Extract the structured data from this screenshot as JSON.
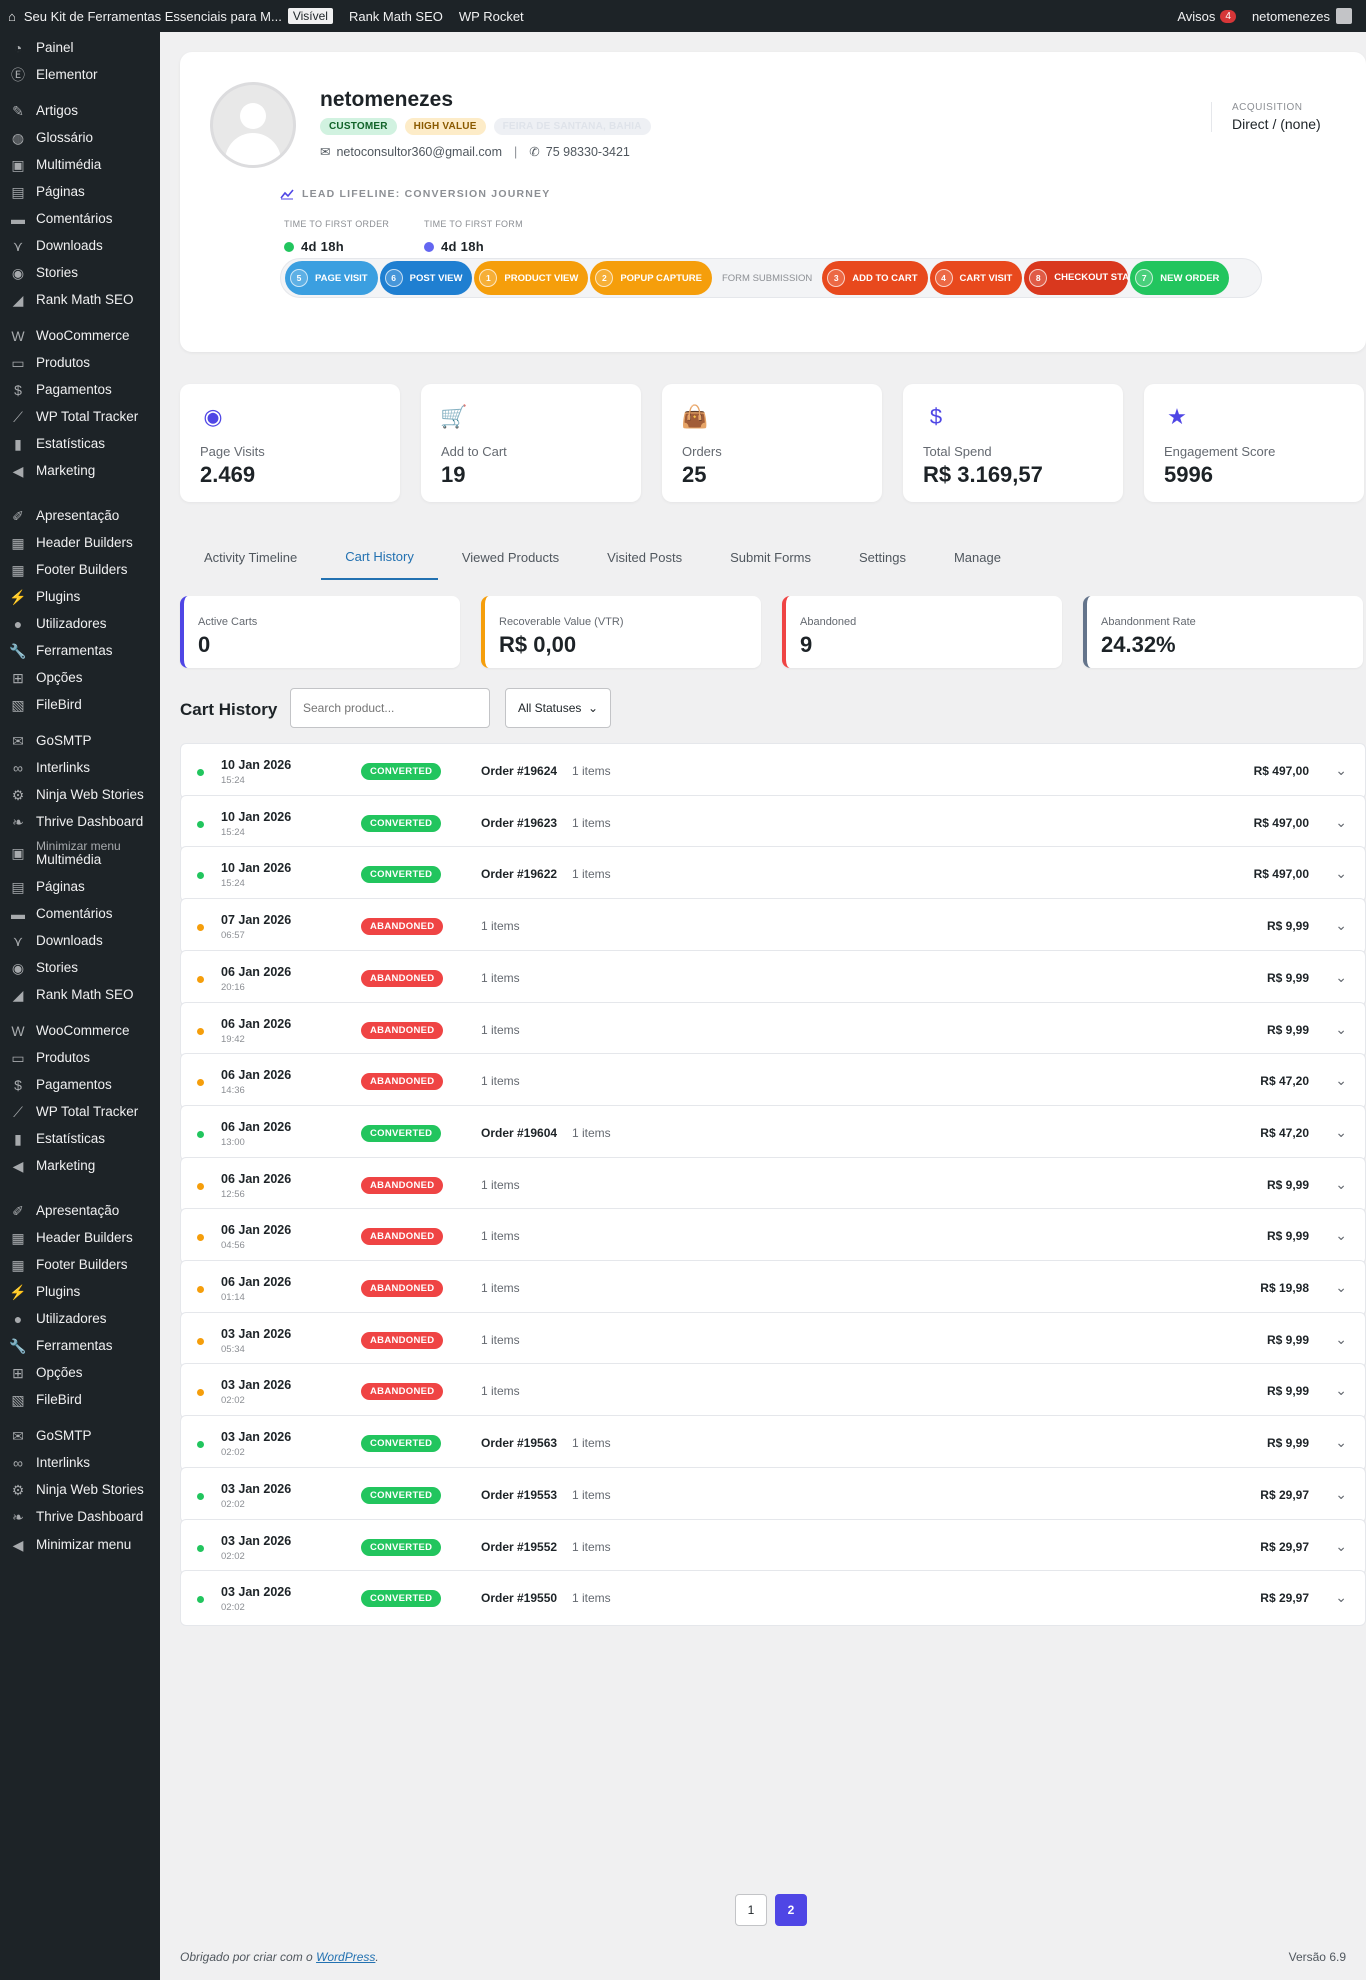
{
  "adminbar": {
    "site_title": "Seu Kit de Ferramentas Essenciais para M...",
    "visibility": "Visível",
    "rank_math": "Rank Math SEO",
    "wp_rocket": "WP Rocket",
    "notices_label": "Avisos",
    "notices_count": "4",
    "user": "netomenezes"
  },
  "sidebar": {
    "items": [
      {
        "label": "Painel",
        "icon": "dashboard-icon"
      },
      {
        "label": "Elementor",
        "icon": "elementor-icon"
      },
      {
        "label": "Artigos",
        "icon": "pin-icon"
      },
      {
        "label": "Glossário",
        "icon": "globe-icon"
      },
      {
        "label": "Multimédia",
        "icon": "media-icon"
      },
      {
        "label": "Páginas",
        "icon": "page-icon"
      },
      {
        "label": "Comentários",
        "icon": "comment-icon"
      },
      {
        "label": "Downloads",
        "icon": "download-icon"
      },
      {
        "label": "Stories",
        "icon": "stories-icon"
      },
      {
        "label": "Rank Math SEO",
        "icon": "chart-icon"
      },
      {
        "label": "WooCommerce",
        "icon": "woo-icon"
      },
      {
        "label": "Produtos",
        "icon": "archive-icon"
      },
      {
        "label": "Pagamentos",
        "icon": "payment-icon"
      },
      {
        "label": "WP Total Tracker",
        "icon": "tracker-icon"
      },
      {
        "label": "Estatísticas",
        "icon": "bar-chart-icon"
      },
      {
        "label": "Marketing",
        "icon": "megaphone-icon"
      },
      {
        "label": "Apresentação",
        "icon": "brush-icon"
      },
      {
        "label": "Header Builders",
        "icon": "grid-icon"
      },
      {
        "label": "Footer Builders",
        "icon": "grid-icon"
      },
      {
        "label": "Plugins",
        "icon": "plugin-icon"
      },
      {
        "label": "Utilizadores",
        "icon": "user-icon"
      },
      {
        "label": "Ferramentas",
        "icon": "wrench-icon"
      },
      {
        "label": "Opções",
        "icon": "settings-icon"
      },
      {
        "label": "FileBird",
        "icon": "folder-icon"
      },
      {
        "label": "GoSMTP",
        "icon": "mail-icon"
      },
      {
        "label": "Interlinks",
        "icon": "link-icon"
      },
      {
        "label": "Ninja Web Stories",
        "icon": "gear-icon"
      },
      {
        "label": "Thrive Dashboard",
        "icon": "leaf-icon"
      },
      {
        "label": "Minimizar menu",
        "sub": "Multimédia",
        "icon": "media-icon"
      },
      {
        "label": "Páginas",
        "icon": "page-icon"
      },
      {
        "label": "Comentários",
        "icon": "comment-icon"
      },
      {
        "label": "Downloads",
        "icon": "download-icon"
      },
      {
        "label": "Stories",
        "icon": "stories-icon"
      },
      {
        "label": "Rank Math SEO",
        "icon": "chart-icon"
      },
      {
        "label": "WooCommerce",
        "icon": "woo-icon"
      },
      {
        "label": "Produtos",
        "icon": "archive-icon"
      },
      {
        "label": "Pagamentos",
        "icon": "payment-icon"
      },
      {
        "label": "WP Total Tracker",
        "icon": "tracker-icon"
      },
      {
        "label": "Estatísticas",
        "icon": "bar-chart-icon"
      },
      {
        "label": "Marketing",
        "icon": "megaphone-icon"
      },
      {
        "label": "Apresentação",
        "icon": "brush-icon"
      },
      {
        "label": "Header Builders",
        "icon": "grid-icon"
      },
      {
        "label": "Footer Builders",
        "icon": "grid-icon"
      },
      {
        "label": "Plugins",
        "icon": "plugin-icon"
      },
      {
        "label": "Utilizadores",
        "icon": "user-icon"
      },
      {
        "label": "Ferramentas",
        "icon": "wrench-icon"
      },
      {
        "label": "Opções",
        "icon": "settings-icon"
      },
      {
        "label": "FileBird",
        "icon": "folder-icon"
      },
      {
        "label": "GoSMTP",
        "icon": "mail-icon"
      },
      {
        "label": "Interlinks",
        "icon": "link-icon"
      },
      {
        "label": "Ninja Web Stories",
        "icon": "gear-icon"
      },
      {
        "label": "Thrive Dashboard",
        "icon": "leaf-icon"
      },
      {
        "label": "Minimizar menu",
        "icon": "collapse-icon"
      }
    ]
  },
  "profile": {
    "name": "netomenezes",
    "badges": [
      "CUSTOMER",
      "HIGH VALUE",
      "FEIRA DE SANTANA, BAHIA"
    ],
    "email": "netoconsultor360@gmail.com",
    "phone": "75 98330-3421",
    "acquisition_label": "ACQUISITION",
    "acquisition_value": "Direct / (none)",
    "lifeline_title": "LEAD LIFELINE: CONVERSION JOURNEY",
    "ttfo_label": "TIME TO FIRST ORDER",
    "ttfo_value": "4d 18h",
    "ttff_label": "TIME TO FIRST FORM",
    "ttff_value": "4d 18h",
    "journey": [
      {
        "num": "5",
        "label": "PAGE VISIT",
        "color": "#3b9fe0"
      },
      {
        "num": "6",
        "label": "POST VIEW",
        "color": "#1f7fd1"
      },
      {
        "num": "1",
        "label": "PRODUCT VIEW",
        "color": "#f59e0b"
      },
      {
        "num": "2",
        "label": "POPUP CAPTURE",
        "color": "#f59e0b"
      },
      {
        "num": "",
        "label": "FORM SUBMISSION",
        "color": ""
      },
      {
        "num": "3",
        "label": "ADD TO CART",
        "color": "#e8491d"
      },
      {
        "num": "4",
        "label": "CART VISIT",
        "color": "#e8491d"
      },
      {
        "num": "8",
        "label": "CHECKOUT START",
        "color": "#d9381e"
      },
      {
        "num": "7",
        "label": "NEW ORDER",
        "color": "#22c55e"
      }
    ]
  },
  "stats": [
    {
      "label": "Page Visits",
      "value": "2.469",
      "icon": "eye-icon"
    },
    {
      "label": "Add to Cart",
      "value": "19",
      "icon": "cart-icon"
    },
    {
      "label": "Orders",
      "value": "25",
      "icon": "bag-icon"
    },
    {
      "label": "Total Spend",
      "value": "R$ 3.169,57",
      "icon": "dollar-icon"
    },
    {
      "label": "Engagement Score",
      "value": "5996",
      "icon": "star-icon"
    }
  ],
  "tabs": [
    "Activity Timeline",
    "Cart History",
    "Viewed Products",
    "Visited Posts",
    "Submit Forms",
    "Settings",
    "Manage"
  ],
  "cart_summary": [
    {
      "label": "Active Carts",
      "value": "0",
      "color": "#4f46e5"
    },
    {
      "label": "Recoverable Value (VTR)",
      "value": "R$ 0,00",
      "color": "#f59e0b"
    },
    {
      "label": "Abandoned",
      "value": "9",
      "color": "#ef4444"
    },
    {
      "label": "Abandonment Rate",
      "value": "24.32%",
      "color": "#64748b"
    }
  ],
  "cart_history": {
    "title": "Cart History",
    "search_placeholder": "Search product...",
    "status_filter": "All Statuses",
    "rows": [
      {
        "date": "10 Jan 2026",
        "time": "15:24",
        "status": "CONVERTED",
        "order": "Order #19624",
        "items": "1 items",
        "amount": "R$ 497,00"
      },
      {
        "date": "10 Jan 2026",
        "time": "15:24",
        "status": "CONVERTED",
        "order": "Order #19623",
        "items": "1 items",
        "amount": "R$ 497,00"
      },
      {
        "date": "10 Jan 2026",
        "time": "15:24",
        "status": "CONVERTED",
        "order": "Order #19622",
        "items": "1 items",
        "amount": "R$ 497,00"
      },
      {
        "date": "07 Jan 2026",
        "time": "06:57",
        "status": "ABANDONED",
        "order": "",
        "items": "1 items",
        "amount": "R$ 9,99"
      },
      {
        "date": "06 Jan 2026",
        "time": "20:16",
        "status": "ABANDONED",
        "order": "",
        "items": "1 items",
        "amount": "R$ 9,99"
      },
      {
        "date": "06 Jan 2026",
        "time": "19:42",
        "status": "ABANDONED",
        "order": "",
        "items": "1 items",
        "amount": "R$ 9,99"
      },
      {
        "date": "06 Jan 2026",
        "time": "14:36",
        "status": "ABANDONED",
        "order": "",
        "items": "1 items",
        "amount": "R$ 47,20"
      },
      {
        "date": "06 Jan 2026",
        "time": "13:00",
        "status": "CONVERTED",
        "order": "Order #19604",
        "items": "1 items",
        "amount": "R$ 47,20"
      },
      {
        "date": "06 Jan 2026",
        "time": "12:56",
        "status": "ABANDONED",
        "order": "",
        "items": "1 items",
        "amount": "R$ 9,99"
      },
      {
        "date": "06 Jan 2026",
        "time": "04:56",
        "status": "ABANDONED",
        "order": "",
        "items": "1 items",
        "amount": "R$ 9,99"
      },
      {
        "date": "06 Jan 2026",
        "time": "01:14",
        "status": "ABANDONED",
        "order": "",
        "items": "1 items",
        "amount": "R$ 19,98"
      },
      {
        "date": "03 Jan 2026",
        "time": "05:34",
        "status": "ABANDONED",
        "order": "",
        "items": "1 items",
        "amount": "R$ 9,99"
      },
      {
        "date": "03 Jan 2026",
        "time": "02:02",
        "status": "ABANDONED",
        "order": "",
        "items": "1 items",
        "amount": "R$ 9,99"
      },
      {
        "date": "03 Jan 2026",
        "time": "02:02",
        "status": "CONVERTED",
        "order": "Order #19563",
        "items": "1 items",
        "amount": "R$ 9,99"
      },
      {
        "date": "03 Jan 2026",
        "time": "02:02",
        "status": "CONVERTED",
        "order": "Order #19553",
        "items": "1 items",
        "amount": "R$ 29,97"
      },
      {
        "date": "03 Jan 2026",
        "time": "02:02",
        "status": "CONVERTED",
        "order": "Order #19552",
        "items": "1 items",
        "amount": "R$ 29,97"
      },
      {
        "date": "03 Jan 2026",
        "time": "02:02",
        "status": "CONVERTED",
        "order": "Order #19550",
        "items": "1 items",
        "amount": "R$ 29,97"
      }
    ]
  },
  "pagination": {
    "pages": [
      "1",
      "2"
    ],
    "current": "2"
  },
  "footer": {
    "thanks_prefix": "Obrigado por criar com o ",
    "wp_link": "WordPress",
    "thanks_suffix": ".",
    "version": "Versão 6.9"
  },
  "colors": {
    "converted": "#22c55e",
    "abandoned": "#ef4444",
    "dot_abandoned": "#f59e0b",
    "accent": "#4f46e5"
  }
}
